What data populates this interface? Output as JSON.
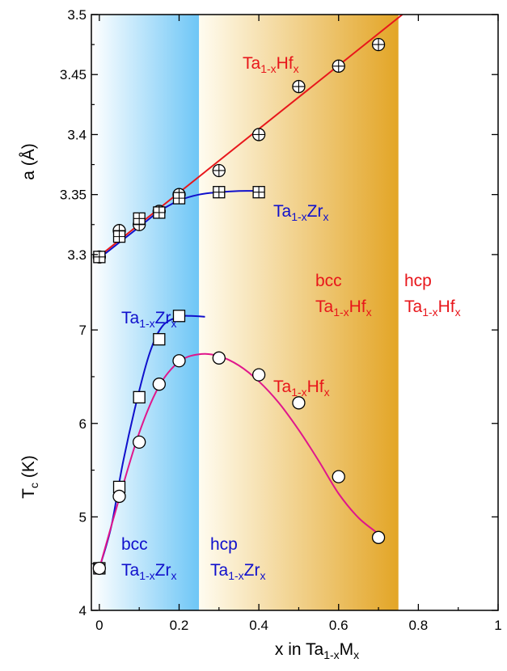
{
  "chart_data": [
    {
      "type": "scatter",
      "panel": "top",
      "ylabel_parts": [
        "a (",
        "Å",
        ")"
      ],
      "ylim": [
        3.275,
        3.5
      ],
      "yticks": [
        "3.3",
        "3.35",
        "3.4",
        "3.45",
        "3.5"
      ],
      "series": [
        {
          "name_parts": [
            "Ta",
            "1-x",
            "Hf",
            "x"
          ],
          "marker": "circle-plus",
          "color": "#e8161b",
          "x": [
            0,
            0.05,
            0.1,
            0.15,
            0.2,
            0.3,
            0.4,
            0.5,
            0.6,
            0.7
          ],
          "y": [
            3.298,
            3.32,
            3.325,
            3.336,
            3.35,
            3.37,
            3.4,
            3.44,
            3.457,
            3.475
          ],
          "fit": {
            "type": "linear",
            "x": [
              -0.01,
              0.76
            ],
            "y": [
              3.296,
              3.5
            ]
          }
        },
        {
          "name_parts": [
            "Ta",
            "1-x",
            "Zr",
            "x"
          ],
          "marker": "square-plus",
          "color": "#1010cc",
          "x": [
            0,
            0.05,
            0.1,
            0.15,
            0.2,
            0.3,
            0.4
          ],
          "y": [
            3.298,
            3.315,
            3.33,
            3.335,
            3.347,
            3.352,
            3.352
          ],
          "fit": {
            "type": "smooth",
            "x": [
              -0.01,
              0.0,
              0.05,
              0.1,
              0.15,
              0.2,
              0.25,
              0.3,
              0.35,
              0.4
            ],
            "y": [
              3.295,
              3.297,
              3.31,
              3.323,
              3.336,
              3.345,
              3.35,
              3.352,
              3.353,
              3.353
            ]
          }
        }
      ]
    },
    {
      "type": "scatter",
      "panel": "bottom",
      "ylabel_parts": [
        "T",
        "c",
        " (K)"
      ],
      "ylim": [
        4.0,
        7.2
      ],
      "yticks": [
        "4",
        "5",
        "6",
        "7"
      ],
      "series": [
        {
          "name_parts": [
            "Ta",
            "1-x",
            "Zr",
            "x"
          ],
          "marker": "square",
          "color": "#1010cc",
          "x": [
            0,
            0.05,
            0.1,
            0.15,
            0.2
          ],
          "y": [
            4.45,
            5.32,
            6.28,
            6.9,
            7.15
          ],
          "fit": {
            "type": "smooth",
            "x": [
              0.0,
              0.03,
              0.06,
              0.1,
              0.13,
              0.16,
              0.2,
              0.23,
              0.265
            ],
            "y": [
              4.45,
              4.9,
              5.6,
              6.35,
              6.8,
              7.05,
              7.14,
              7.15,
              7.14
            ]
          }
        },
        {
          "name_parts": [
            "Ta",
            "1-x",
            "Hf",
            "x"
          ],
          "marker": "circle",
          "color": "#e0168c",
          "x": [
            0,
            0.05,
            0.1,
            0.15,
            0.2,
            0.3,
            0.4,
            0.5,
            0.6,
            0.7
          ],
          "y": [
            4.45,
            5.22,
            5.8,
            6.42,
            6.67,
            6.7,
            6.52,
            6.22,
            5.43,
            4.78
          ],
          "fit": {
            "type": "smooth",
            "x": [
              0.0,
              0.05,
              0.1,
              0.15,
              0.2,
              0.25,
              0.3,
              0.35,
              0.4,
              0.45,
              0.5,
              0.55,
              0.6,
              0.65,
              0.7
            ],
            "y": [
              4.45,
              5.2,
              5.9,
              6.4,
              6.66,
              6.74,
              6.72,
              6.62,
              6.45,
              6.22,
              5.93,
              5.6,
              5.25,
              4.99,
              4.82
            ]
          }
        }
      ]
    }
  ],
  "xaxis": {
    "label_parts": [
      "x in Ta",
      "1-x",
      "M",
      "x"
    ],
    "xlim": [
      -0.02,
      1.0
    ],
    "xticks": [
      "0",
      "0.2",
      "0.4",
      "0.6",
      "0.8",
      "1"
    ]
  },
  "regions": [
    {
      "x0": -0.02,
      "x1": 0.25,
      "from": "#ffffff",
      "to": "#6ec6f6"
    },
    {
      "x0": 0.25,
      "x1": 0.75,
      "from": "#fffcf0",
      "to": "#e3a526"
    }
  ],
  "annotations": {
    "hf_top": [
      "Ta",
      "1-x",
      "Hf",
      "x"
    ],
    "zr_top": [
      "Ta",
      "1-x",
      "Zr",
      "x"
    ],
    "bcc_hf": {
      "phase": "bcc",
      "formula": [
        "Ta",
        "1-x",
        "Hf",
        "x"
      ]
    },
    "hcp_hf": {
      "phase": "hcp",
      "formula": [
        "Ta",
        "1-x",
        "Hf",
        "x"
      ]
    },
    "zr_bottom": [
      "Ta",
      "1-x",
      "Zr",
      "x"
    ],
    "hf_bottom": [
      "Ta",
      "1-x",
      "Hf",
      "x"
    ],
    "bcc_zr": {
      "phase": "bcc",
      "formula": [
        "Ta",
        "1-x",
        "Zr",
        "x"
      ]
    },
    "hcp_zr": {
      "phase": "hcp",
      "formula": [
        "Ta",
        "1-x",
        "Zr",
        "x"
      ]
    }
  }
}
